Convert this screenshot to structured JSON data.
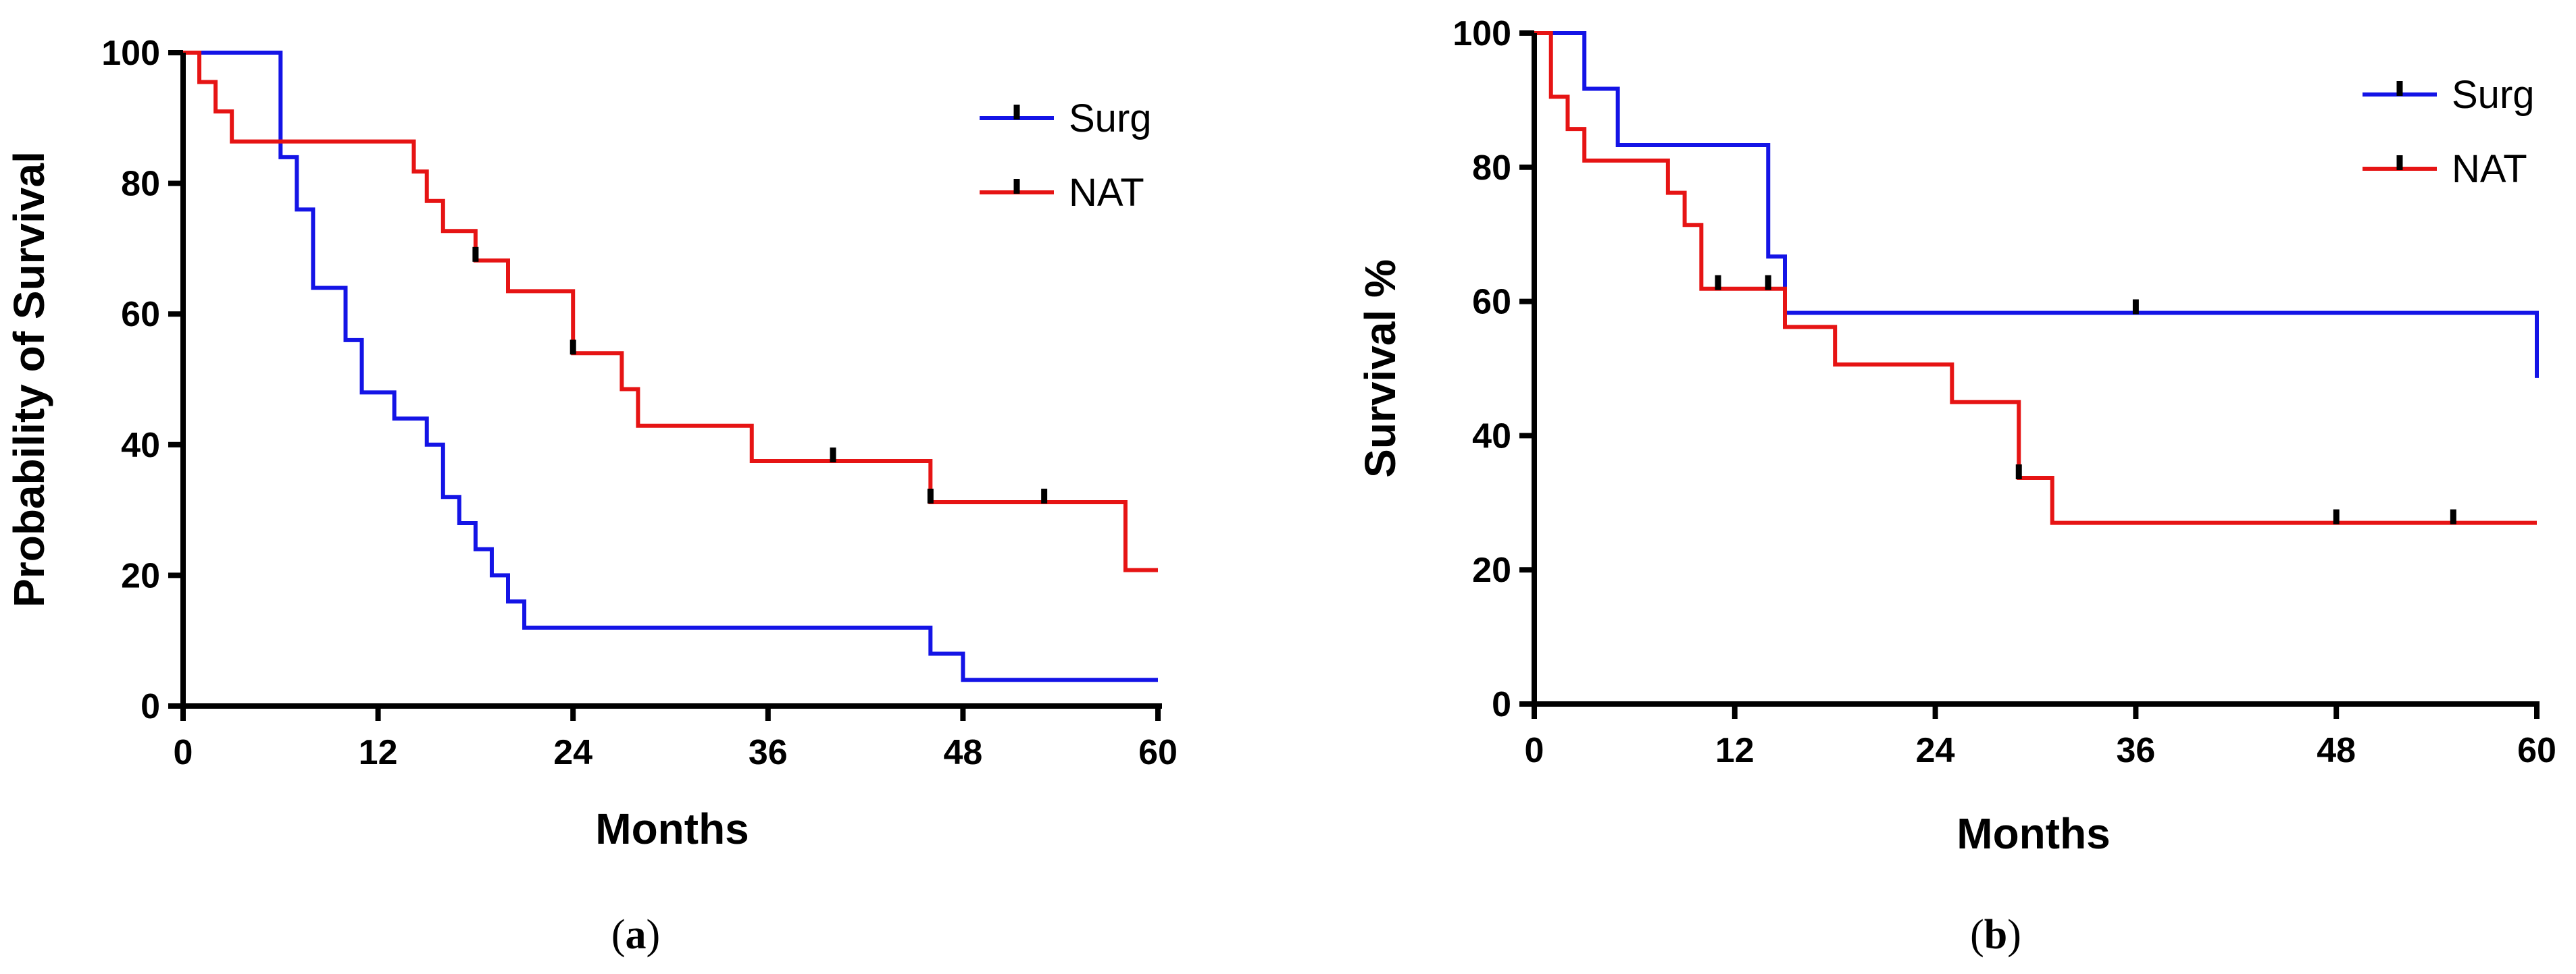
{
  "chart_data": [
    {
      "type": "line",
      "subtype": "kaplan-meier",
      "panel": "a",
      "caption_letter": "a",
      "xlabel": "Months",
      "ylabel": "Probability of Survival",
      "xlim": [
        0,
        60
      ],
      "ylim": [
        0,
        100
      ],
      "x_ticks": [
        0,
        12,
        24,
        36,
        48,
        60
      ],
      "y_ticks": [
        0,
        20,
        40,
        60,
        80,
        100
      ],
      "legend_position": "top-right",
      "series": [
        {
          "name": "Surg",
          "color": "#1414e6",
          "steps": [
            [
              0,
              100
            ],
            [
              6,
              84
            ],
            [
              7,
              76
            ],
            [
              8,
              64
            ],
            [
              10,
              56
            ],
            [
              11,
              48
            ],
            [
              13,
              44
            ],
            [
              15,
              40
            ],
            [
              16,
              32
            ],
            [
              17,
              28
            ],
            [
              18,
              24
            ],
            [
              19,
              20
            ],
            [
              20,
              16
            ],
            [
              21,
              12
            ],
            [
              46,
              8
            ],
            [
              48,
              4
            ],
            [
              60,
              4
            ]
          ],
          "censored": []
        },
        {
          "name": "NAT",
          "color": "#e61414",
          "steps": [
            [
              0,
              100
            ],
            [
              1,
              95.5
            ],
            [
              2,
              91
            ],
            [
              3,
              86.4
            ],
            [
              14.2,
              81.8
            ],
            [
              15,
              77.3
            ],
            [
              16,
              72.7
            ],
            [
              18,
              68.2
            ],
            [
              20,
              63.5
            ],
            [
              24,
              54
            ],
            [
              27,
              48.5
            ],
            [
              28,
              42.9
            ],
            [
              35,
              37.5
            ],
            [
              46,
              31.2
            ],
            [
              58,
              20.8
            ],
            [
              60,
              20.8
            ]
          ],
          "censored": [
            [
              18,
              68.2
            ],
            [
              24,
              54
            ],
            [
              40,
              37.5
            ],
            [
              46,
              31.2
            ],
            [
              53,
              31.2
            ]
          ]
        }
      ]
    },
    {
      "type": "line",
      "subtype": "kaplan-meier",
      "panel": "b",
      "caption_letter": "b",
      "xlabel": "Months",
      "ylabel": "Survival %",
      "xlim": [
        0,
        60
      ],
      "ylim": [
        0,
        100
      ],
      "x_ticks": [
        0,
        12,
        24,
        36,
        48,
        60
      ],
      "y_ticks": [
        0,
        20,
        40,
        60,
        80,
        100
      ],
      "legend_position": "top-right",
      "series": [
        {
          "name": "Surg",
          "color": "#1414e6",
          "steps": [
            [
              0,
              100
            ],
            [
              3,
              91.7
            ],
            [
              5,
              83.3
            ],
            [
              14,
              66.7
            ],
            [
              15,
              58.3
            ],
            [
              60,
              48.6
            ]
          ],
          "censored": [
            [
              36,
              58.3
            ]
          ]
        },
        {
          "name": "NAT",
          "color": "#e61414",
          "steps": [
            [
              0,
              100
            ],
            [
              1,
              90.5
            ],
            [
              2,
              85.7
            ],
            [
              3,
              81
            ],
            [
              8,
              76.2
            ],
            [
              9,
              71.4
            ],
            [
              10,
              61.9
            ],
            [
              15,
              56.2
            ],
            [
              18,
              50.6
            ],
            [
              25,
              45
            ],
            [
              29,
              33.7
            ],
            [
              31,
              27
            ],
            [
              60,
              27
            ]
          ],
          "censored": [
            [
              11,
              61.9
            ],
            [
              14,
              61.9
            ],
            [
              29,
              33.7
            ],
            [
              48,
              27
            ],
            [
              55,
              27
            ]
          ]
        }
      ]
    }
  ]
}
